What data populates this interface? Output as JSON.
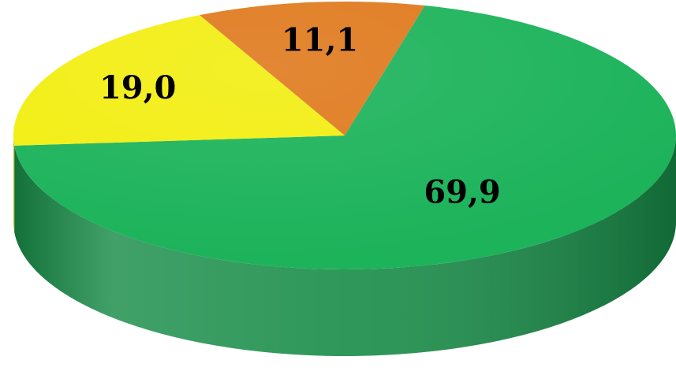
{
  "chart_data": {
    "type": "pie",
    "title": "",
    "slices": [
      {
        "label": "69,9",
        "value": 69.9,
        "color": "#1db35b"
      },
      {
        "label": "19,0",
        "value": 19.0,
        "color": "#f2ee12"
      },
      {
        "label": "11,1",
        "value": 11.1,
        "color": "#e07a1e"
      }
    ],
    "legend": "none",
    "style": "3d"
  }
}
